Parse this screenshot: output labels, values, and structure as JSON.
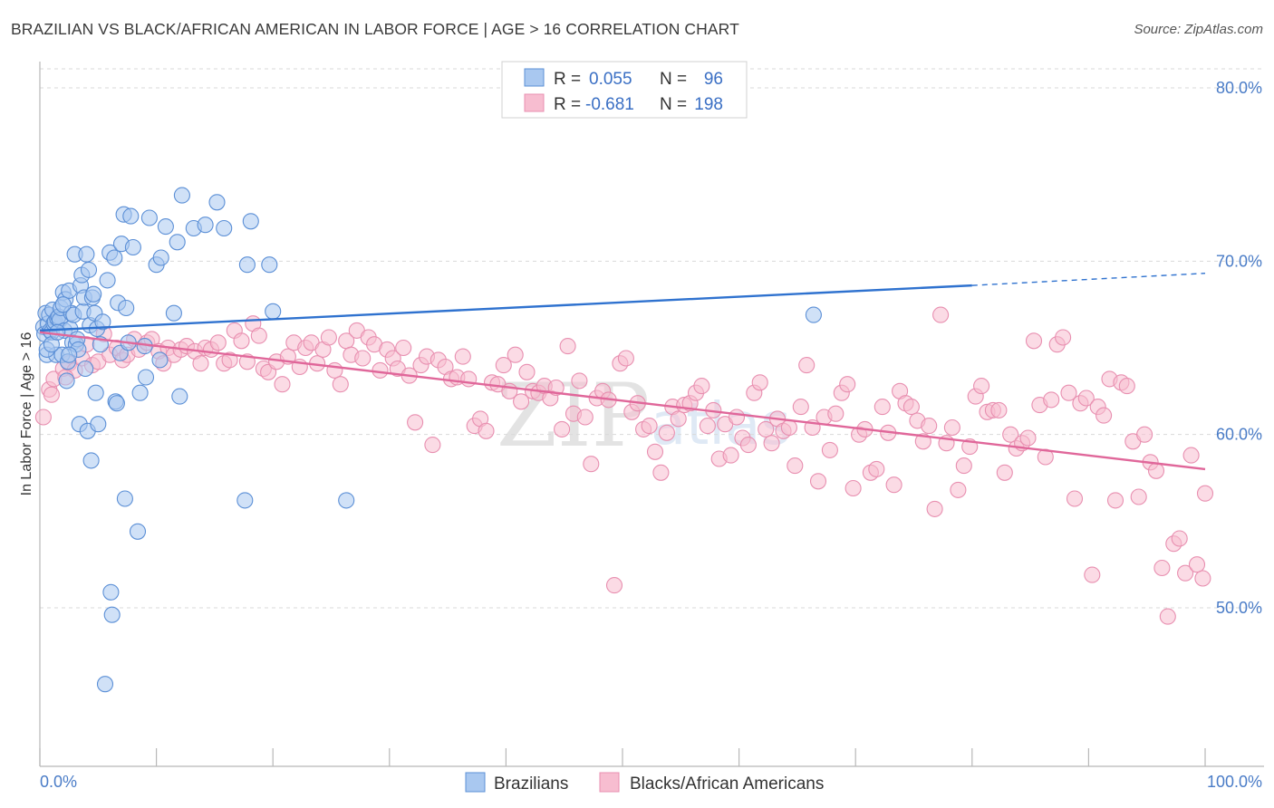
{
  "title": "BRAZILIAN VS BLACK/AFRICAN AMERICAN IN LABOR FORCE | AGE > 16 CORRELATION CHART",
  "source": "Source: ZipAtlas.com",
  "watermark": {
    "zip": "ZIP",
    "atlas": "atlas"
  },
  "colors": {
    "blue_fill": "#a9c8f0",
    "blue_stroke": "#5b8fd6",
    "blue_line": "#2f72cf",
    "pink_fill": "#f7bdd0",
    "pink_stroke": "#e88fb0",
    "pink_line": "#e0679a",
    "grid": "#d9d9d9",
    "axis_text": "#4a7cc7"
  },
  "legend": {
    "rows": [
      {
        "r_label": "R =",
        "r_value": "0.055",
        "n_label": "N =",
        "n_value": "96"
      },
      {
        "r_label": "R =",
        "r_value": "-0.681",
        "n_label": "N =",
        "n_value": "198"
      }
    ]
  },
  "chart_data": {
    "type": "scatter",
    "title": "BRAZILIAN VS BLACK/AFRICAN AMERICAN IN LABOR FORCE | AGE > 16 CORRELATION CHART",
    "xlabel": "",
    "ylabel": "In Labor Force | Age > 16",
    "xlim": [
      0,
      100
    ],
    "ylim": [
      40.5,
      82.5
    ],
    "x_tick_labels": [
      "0.0%",
      "100.0%"
    ],
    "y_ticks": [
      50,
      60,
      70,
      80
    ],
    "y_tick_labels": [
      "50.0%",
      "60.0%",
      "70.0%",
      "80.0%"
    ],
    "series": [
      {
        "name": "Brazilians",
        "R": 0.055,
        "N": 96,
        "trend": {
          "x0": 0,
          "y0": 66.0,
          "x1": 80,
          "y1": 68.6,
          "dash_x1": 100,
          "dash_y1": 69.3
        },
        "points": [
          [
            0.3,
            66.2
          ],
          [
            0.4,
            65.8
          ],
          [
            0.5,
            67.0
          ],
          [
            0.6,
            64.6
          ],
          [
            0.7,
            66.4
          ],
          [
            0.8,
            66.9
          ],
          [
            0.9,
            66.0
          ],
          [
            1.0,
            65.9
          ],
          [
            1.1,
            67.2
          ],
          [
            1.2,
            66.4
          ],
          [
            1.3,
            66.5
          ],
          [
            1.4,
            64.6
          ],
          [
            1.5,
            66.7
          ],
          [
            1.6,
            66.8
          ],
          [
            1.7,
            66.6
          ],
          [
            1.8,
            67.3
          ],
          [
            1.9,
            64.6
          ],
          [
            2.0,
            68.2
          ],
          [
            2.1,
            66.0
          ],
          [
            2.2,
            67.8
          ],
          [
            2.3,
            63.1
          ],
          [
            2.4,
            64.2
          ],
          [
            2.5,
            68.3
          ],
          [
            2.6,
            66.1
          ],
          [
            2.7,
            67.0
          ],
          [
            2.8,
            65.3
          ],
          [
            2.9,
            66.9
          ],
          [
            3.0,
            70.4
          ],
          [
            3.1,
            65.2
          ],
          [
            3.2,
            65.5
          ],
          [
            3.3,
            64.9
          ],
          [
            3.4,
            60.6
          ],
          [
            3.5,
            68.6
          ],
          [
            3.6,
            69.2
          ],
          [
            3.7,
            67.1
          ],
          [
            3.8,
            67.9
          ],
          [
            3.9,
            63.8
          ],
          [
            4.0,
            70.4
          ],
          [
            4.1,
            60.2
          ],
          [
            4.2,
            69.5
          ],
          [
            4.3,
            66.3
          ],
          [
            4.4,
            58.5
          ],
          [
            4.5,
            67.9
          ],
          [
            4.6,
            68.1
          ],
          [
            4.7,
            67.0
          ],
          [
            4.8,
            62.4
          ],
          [
            4.9,
            66.1
          ],
          [
            5.0,
            60.6
          ],
          [
            5.2,
            65.2
          ],
          [
            5.4,
            66.5
          ],
          [
            5.6,
            45.6
          ],
          [
            5.8,
            68.9
          ],
          [
            6.0,
            70.5
          ],
          [
            6.1,
            50.9
          ],
          [
            6.2,
            49.6
          ],
          [
            6.4,
            70.2
          ],
          [
            6.5,
            61.9
          ],
          [
            6.6,
            61.8
          ],
          [
            6.7,
            67.6
          ],
          [
            6.9,
            64.7
          ],
          [
            7.0,
            71.0
          ],
          [
            7.2,
            72.7
          ],
          [
            7.3,
            56.3
          ],
          [
            7.4,
            67.3
          ],
          [
            7.6,
            65.3
          ],
          [
            7.8,
            72.6
          ],
          [
            8.0,
            70.8
          ],
          [
            8.4,
            54.4
          ],
          [
            8.6,
            62.4
          ],
          [
            9.0,
            65.1
          ],
          [
            9.1,
            63.3
          ],
          [
            9.4,
            72.5
          ],
          [
            10.0,
            69.8
          ],
          [
            10.3,
            64.3
          ],
          [
            10.4,
            70.2
          ],
          [
            10.8,
            72.0
          ],
          [
            11.5,
            67.0
          ],
          [
            11.8,
            71.1
          ],
          [
            12.0,
            62.2
          ],
          [
            12.2,
            73.8
          ],
          [
            13.2,
            71.9
          ],
          [
            14.2,
            72.1
          ],
          [
            15.2,
            73.4
          ],
          [
            15.8,
            71.9
          ],
          [
            17.6,
            56.2
          ],
          [
            17.8,
            69.8
          ],
          [
            18.1,
            72.3
          ],
          [
            19.7,
            69.8
          ],
          [
            20.0,
            67.1
          ],
          [
            26.3,
            56.2
          ],
          [
            66.4,
            66.9
          ],
          [
            0.6,
            64.9
          ],
          [
            1.0,
            65.2
          ],
          [
            1.5,
            65.9
          ],
          [
            2.0,
            67.5
          ],
          [
            2.5,
            64.6
          ]
        ]
      },
      {
        "name": "Blacks/African Americans",
        "R": -0.681,
        "N": 198,
        "trend": {
          "x0": 0,
          "y0": 65.9,
          "x1": 100,
          "y1": 58.0
        },
        "points": [
          [
            0.3,
            61.0
          ],
          [
            0.8,
            62.6
          ],
          [
            1.2,
            63.2
          ],
          [
            2.0,
            63.8
          ],
          [
            2.5,
            64.1
          ],
          [
            3.0,
            63.7
          ],
          [
            3.6,
            64.4
          ],
          [
            4.0,
            65.2
          ],
          [
            4.5,
            64.0
          ],
          [
            5.0,
            64.2
          ],
          [
            5.5,
            65.8
          ],
          [
            6.0,
            64.6
          ],
          [
            6.6,
            65.0
          ],
          [
            7.1,
            64.3
          ],
          [
            7.5,
            64.6
          ],
          [
            8.1,
            65.5
          ],
          [
            8.5,
            64.9
          ],
          [
            9.2,
            65.3
          ],
          [
            9.6,
            65.5
          ],
          [
            10.2,
            64.8
          ],
          [
            10.6,
            64.1
          ],
          [
            11.0,
            65.0
          ],
          [
            11.5,
            64.6
          ],
          [
            12.1,
            64.9
          ],
          [
            12.6,
            65.1
          ],
          [
            13.3,
            64.8
          ],
          [
            13.8,
            64.1
          ],
          [
            14.2,
            65.0
          ],
          [
            14.7,
            64.9
          ],
          [
            15.3,
            65.3
          ],
          [
            15.8,
            64.1
          ],
          [
            16.3,
            64.3
          ],
          [
            16.7,
            66.0
          ],
          [
            17.3,
            65.4
          ],
          [
            17.8,
            64.2
          ],
          [
            18.3,
            66.4
          ],
          [
            18.8,
            65.7
          ],
          [
            19.2,
            63.8
          ],
          [
            19.6,
            63.6
          ],
          [
            20.3,
            64.2
          ],
          [
            20.8,
            62.9
          ],
          [
            21.3,
            64.5
          ],
          [
            21.8,
            65.3
          ],
          [
            22.3,
            63.9
          ],
          [
            22.8,
            65.0
          ],
          [
            23.3,
            65.3
          ],
          [
            23.8,
            64.1
          ],
          [
            24.3,
            64.9
          ],
          [
            24.8,
            65.6
          ],
          [
            25.3,
            63.7
          ],
          [
            25.8,
            62.9
          ],
          [
            26.3,
            65.4
          ],
          [
            26.7,
            64.6
          ],
          [
            27.2,
            66.0
          ],
          [
            27.7,
            64.4
          ],
          [
            28.2,
            65.6
          ],
          [
            28.7,
            65.2
          ],
          [
            29.2,
            63.7
          ],
          [
            29.8,
            64.9
          ],
          [
            30.3,
            64.4
          ],
          [
            30.7,
            63.8
          ],
          [
            31.2,
            65.0
          ],
          [
            31.7,
            63.4
          ],
          [
            32.2,
            60.7
          ],
          [
            32.7,
            64.0
          ],
          [
            33.2,
            64.5
          ],
          [
            33.7,
            59.4
          ],
          [
            34.2,
            64.3
          ],
          [
            34.8,
            63.9
          ],
          [
            35.3,
            63.2
          ],
          [
            35.8,
            63.3
          ],
          [
            36.3,
            64.5
          ],
          [
            36.8,
            63.2
          ],
          [
            37.3,
            60.5
          ],
          [
            37.8,
            60.9
          ],
          [
            38.3,
            60.2
          ],
          [
            38.8,
            63.0
          ],
          [
            39.3,
            62.9
          ],
          [
            39.8,
            64.0
          ],
          [
            40.3,
            62.5
          ],
          [
            40.8,
            64.6
          ],
          [
            41.3,
            61.9
          ],
          [
            41.8,
            63.6
          ],
          [
            42.3,
            62.5
          ],
          [
            42.8,
            62.4
          ],
          [
            43.3,
            62.8
          ],
          [
            43.8,
            62.1
          ],
          [
            44.3,
            62.7
          ],
          [
            44.8,
            60.3
          ],
          [
            45.3,
            65.1
          ],
          [
            45.8,
            61.2
          ],
          [
            46.3,
            63.1
          ],
          [
            46.8,
            61.0
          ],
          [
            47.3,
            58.3
          ],
          [
            47.8,
            62.1
          ],
          [
            48.3,
            62.5
          ],
          [
            48.8,
            62.0
          ],
          [
            49.3,
            51.3
          ],
          [
            49.8,
            64.1
          ],
          [
            50.3,
            64.4
          ],
          [
            50.8,
            61.3
          ],
          [
            51.3,
            61.8
          ],
          [
            51.8,
            60.3
          ],
          [
            52.3,
            60.5
          ],
          [
            52.8,
            59.0
          ],
          [
            53.3,
            57.8
          ],
          [
            53.8,
            60.1
          ],
          [
            54.3,
            61.6
          ],
          [
            54.8,
            60.9
          ],
          [
            55.3,
            61.7
          ],
          [
            55.8,
            61.8
          ],
          [
            56.3,
            62.4
          ],
          [
            56.8,
            62.8
          ],
          [
            57.3,
            60.5
          ],
          [
            57.8,
            61.4
          ],
          [
            58.3,
            58.6
          ],
          [
            58.8,
            60.6
          ],
          [
            59.3,
            58.8
          ],
          [
            59.8,
            61.0
          ],
          [
            60.3,
            59.8
          ],
          [
            60.8,
            59.4
          ],
          [
            61.3,
            62.4
          ],
          [
            61.8,
            63.0
          ],
          [
            62.3,
            60.3
          ],
          [
            62.8,
            59.5
          ],
          [
            63.3,
            60.9
          ],
          [
            63.8,
            60.2
          ],
          [
            64.3,
            60.4
          ],
          [
            64.8,
            58.2
          ],
          [
            65.3,
            61.6
          ],
          [
            65.8,
            64.0
          ],
          [
            66.3,
            60.4
          ],
          [
            66.8,
            57.3
          ],
          [
            67.3,
            61.0
          ],
          [
            67.8,
            59.1
          ],
          [
            68.3,
            61.2
          ],
          [
            68.8,
            62.4
          ],
          [
            69.3,
            62.9
          ],
          [
            69.8,
            56.9
          ],
          [
            70.3,
            60.0
          ],
          [
            70.8,
            60.3
          ],
          [
            71.3,
            57.8
          ],
          [
            71.8,
            58.0
          ],
          [
            72.3,
            61.6
          ],
          [
            72.8,
            60.1
          ],
          [
            73.3,
            57.1
          ],
          [
            73.8,
            62.5
          ],
          [
            74.3,
            61.8
          ],
          [
            74.8,
            61.6
          ],
          [
            75.3,
            60.8
          ],
          [
            75.8,
            59.6
          ],
          [
            76.3,
            60.5
          ],
          [
            76.8,
            55.7
          ],
          [
            77.3,
            66.9
          ],
          [
            77.8,
            59.5
          ],
          [
            78.3,
            60.4
          ],
          [
            78.8,
            56.8
          ],
          [
            79.3,
            58.2
          ],
          [
            79.8,
            59.3
          ],
          [
            80.3,
            62.2
          ],
          [
            80.8,
            62.8
          ],
          [
            81.3,
            61.3
          ],
          [
            81.8,
            61.4
          ],
          [
            82.3,
            61.4
          ],
          [
            82.8,
            57.8
          ],
          [
            83.3,
            60.0
          ],
          [
            83.8,
            59.2
          ],
          [
            84.3,
            59.5
          ],
          [
            84.8,
            59.8
          ],
          [
            85.3,
            65.4
          ],
          [
            85.8,
            61.7
          ],
          [
            86.3,
            58.7
          ],
          [
            86.8,
            62.0
          ],
          [
            87.3,
            65.2
          ],
          [
            87.8,
            65.6
          ],
          [
            88.3,
            62.4
          ],
          [
            88.8,
            56.3
          ],
          [
            89.3,
            61.8
          ],
          [
            89.8,
            62.1
          ],
          [
            90.3,
            51.9
          ],
          [
            90.8,
            61.6
          ],
          [
            91.3,
            61.1
          ],
          [
            91.8,
            63.2
          ],
          [
            92.3,
            56.2
          ],
          [
            92.8,
            63.0
          ],
          [
            93.3,
            62.8
          ],
          [
            93.8,
            59.6
          ],
          [
            94.3,
            56.4
          ],
          [
            94.8,
            60.0
          ],
          [
            95.3,
            58.4
          ],
          [
            95.8,
            57.9
          ],
          [
            96.3,
            52.3
          ],
          [
            96.8,
            49.5
          ],
          [
            97.3,
            53.7
          ],
          [
            97.8,
            54.0
          ],
          [
            98.3,
            52.0
          ],
          [
            98.8,
            58.8
          ],
          [
            99.3,
            52.5
          ],
          [
            99.8,
            51.7
          ],
          [
            100.0,
            56.6
          ],
          [
            1.0,
            62.3
          ],
          [
            2.2,
            63.3
          ]
        ]
      }
    ]
  },
  "bottom_legend": {
    "items": [
      {
        "label": "Brazilians"
      },
      {
        "label": "Blacks/African Americans"
      }
    ]
  }
}
